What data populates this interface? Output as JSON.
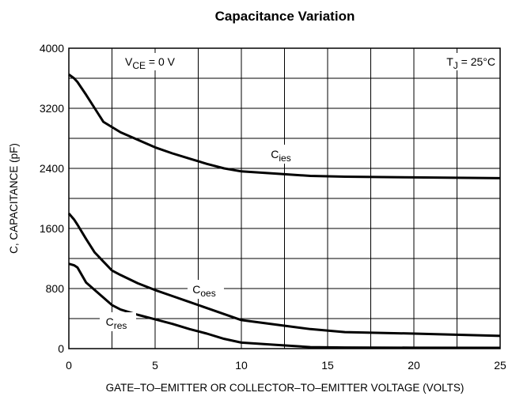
{
  "chart_data": {
    "type": "line",
    "title": "Capacitance Variation",
    "x_label": "GATE–TO–EMITTER OR COLLECTOR–TO–EMITTER VOLTAGE (VOLTS)",
    "y_label": "C, CAPACITANCE (pF)",
    "x": [
      0,
      0.3,
      0.5,
      1,
      1.5,
      2,
      2.5,
      3,
      4,
      5,
      6,
      7,
      8,
      9,
      10,
      12,
      14,
      16,
      20,
      25
    ],
    "series": [
      {
        "name_parts": [
          "C",
          "ies"
        ],
        "color": "#000000",
        "values": [
          3650,
          3600,
          3550,
          3380,
          3200,
          3020,
          2950,
          2880,
          2780,
          2680,
          2600,
          2530,
          2460,
          2400,
          2360,
          2330,
          2300,
          2290,
          2280,
          2270
        ]
      },
      {
        "name_parts": [
          "C",
          "oes"
        ],
        "color": "#000000",
        "values": [
          1800,
          1720,
          1650,
          1460,
          1280,
          1160,
          1040,
          980,
          870,
          780,
          700,
          620,
          540,
          460,
          380,
          320,
          260,
          220,
          200,
          170
        ]
      },
      {
        "name_parts": [
          "C",
          "res"
        ],
        "color": "#000000",
        "values": [
          1130,
          1110,
          1080,
          880,
          780,
          680,
          580,
          520,
          450,
          390,
          330,
          260,
          200,
          130,
          80,
          50,
          20,
          15,
          12,
          10
        ]
      }
    ],
    "annotations": [
      {
        "text": "V",
        "sub": "CE",
        "rest": " = 0 V"
      },
      {
        "text": "T",
        "sub": "J",
        "rest": " = 25°C"
      }
    ],
    "xlim": [
      0,
      25
    ],
    "xticks": [
      0,
      5,
      10,
      15,
      20,
      25
    ],
    "ylim": [
      0,
      4000
    ],
    "yticks": [
      0,
      800,
      1600,
      2400,
      3200,
      4000
    ],
    "grid": true,
    "minor_grid": true
  }
}
